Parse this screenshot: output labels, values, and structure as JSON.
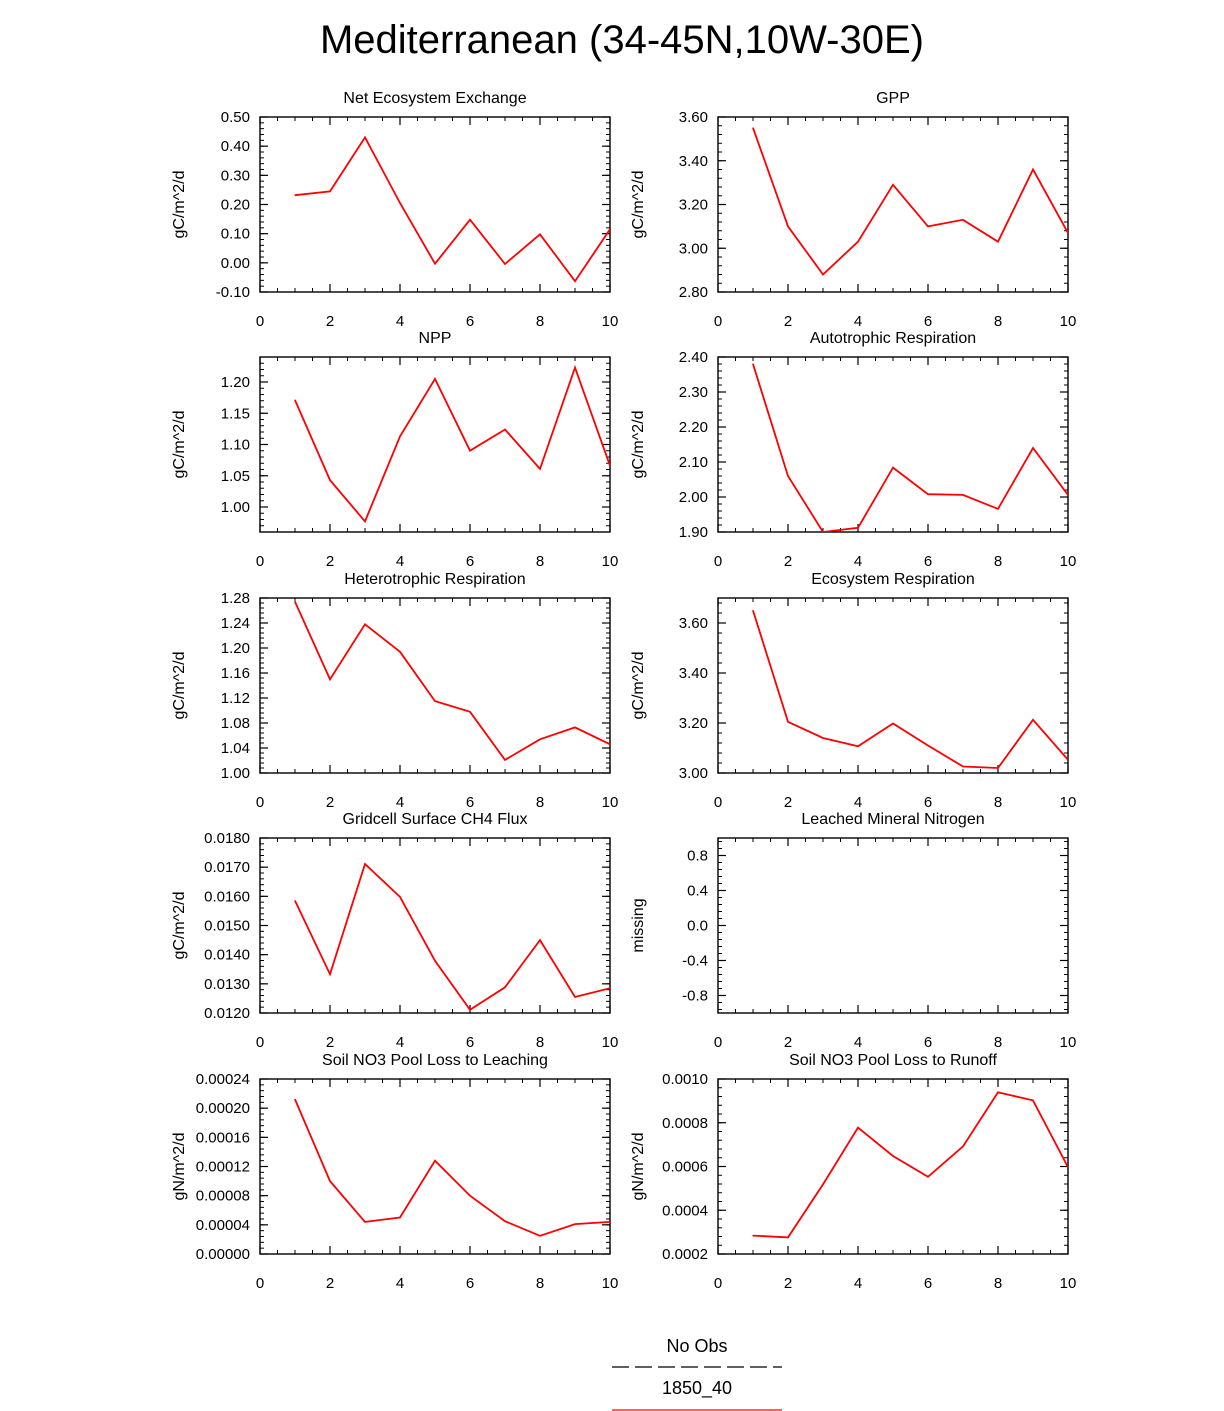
{
  "title": "Mediterranean (34-45N,10W-30E)",
  "colors": {
    "series": "#ff0000",
    "axis": "#000000",
    "obs": "#000000"
  },
  "legend": {
    "obs_label": "No Obs",
    "model_label": "1850_40"
  },
  "chart_data": [
    {
      "type": "line",
      "title": "Net Ecosystem Exchange",
      "ylabel": "gC/m^2/d",
      "xlim": [
        0,
        10
      ],
      "ylim": [
        -0.1,
        0.5
      ],
      "yticks": [
        -0.1,
        0.0,
        0.1,
        0.2,
        0.3,
        0.4,
        0.5
      ],
      "ytick_labels": [
        "-0.10",
        "0.00",
        "0.10",
        "0.20",
        "0.30",
        "0.40",
        "0.50"
      ],
      "xticks": [
        0,
        2,
        4,
        6,
        8,
        10
      ],
      "xtick_labels": [
        "0",
        "2",
        "4",
        "6",
        "8",
        "10"
      ],
      "series": [
        {
          "name": "1850_40",
          "x": [
            1,
            2,
            3,
            4,
            5,
            6,
            7,
            8,
            9,
            10
          ],
          "values": [
            0.232,
            0.245,
            0.43,
            0.205,
            -0.003,
            0.148,
            -0.004,
            0.098,
            -0.063,
            0.115
          ]
        }
      ]
    },
    {
      "type": "line",
      "title": "GPP",
      "ylabel": "gC/m^2/d",
      "xlim": [
        0,
        10
      ],
      "ylim": [
        2.8,
        3.6
      ],
      "yticks": [
        2.8,
        3.0,
        3.2,
        3.4,
        3.6
      ],
      "ytick_labels": [
        "2.80",
        "3.00",
        "3.20",
        "3.40",
        "3.60"
      ],
      "xticks": [
        0,
        2,
        4,
        6,
        8,
        10
      ],
      "xtick_labels": [
        "0",
        "2",
        "4",
        "6",
        "8",
        "10"
      ],
      "series": [
        {
          "name": "1850_40",
          "x": [
            1,
            2,
            3,
            4,
            5,
            6,
            7,
            8,
            9,
            10
          ],
          "values": [
            3.55,
            3.1,
            2.88,
            3.03,
            3.29,
            3.1,
            3.13,
            3.03,
            3.36,
            3.07
          ]
        }
      ]
    },
    {
      "type": "line",
      "title": "NPP",
      "ylabel": "gC/m^2/d",
      "xlim": [
        0,
        10
      ],
      "ylim": [
        0.96,
        1.24
      ],
      "yticks": [
        1.0,
        1.05,
        1.1,
        1.15,
        1.2
      ],
      "ytick_labels": [
        "1.00",
        "1.05",
        "1.10",
        "1.15",
        "1.20"
      ],
      "xticks": [
        0,
        2,
        4,
        6,
        8,
        10
      ],
      "xtick_labels": [
        "0",
        "2",
        "4",
        "6",
        "8",
        "10"
      ],
      "series": [
        {
          "name": "1850_40",
          "x": [
            1,
            2,
            3,
            4,
            5,
            6,
            7,
            8,
            9,
            10
          ],
          "values": [
            1.171,
            1.043,
            0.977,
            1.113,
            1.205,
            1.09,
            1.124,
            1.061,
            1.223,
            1.066
          ]
        }
      ]
    },
    {
      "type": "line",
      "title": "Autotrophic Respiration",
      "ylabel": "gC/m^2/d",
      "xlim": [
        0,
        10
      ],
      "ylim": [
        1.9,
        2.4
      ],
      "yticks": [
        1.9,
        2.0,
        2.1,
        2.2,
        2.3,
        2.4
      ],
      "ytick_labels": [
        "1.90",
        "2.00",
        "2.10",
        "2.20",
        "2.30",
        "2.40"
      ],
      "xticks": [
        0,
        2,
        4,
        6,
        8,
        10
      ],
      "xtick_labels": [
        "0",
        "2",
        "4",
        "6",
        "8",
        "10"
      ],
      "series": [
        {
          "name": "1850_40",
          "x": [
            1,
            2,
            3,
            4,
            5,
            6,
            7,
            8,
            9,
            10
          ],
          "values": [
            2.38,
            2.06,
            1.9,
            1.912,
            2.084,
            2.008,
            2.006,
            1.966,
            2.14,
            2.006
          ]
        }
      ]
    },
    {
      "type": "line",
      "title": "Heterotrophic Respiration",
      "ylabel": "gC/m^2/d",
      "xlim": [
        0,
        10
      ],
      "ylim": [
        1.0,
        1.28
      ],
      "yticks": [
        1.0,
        1.04,
        1.08,
        1.12,
        1.16,
        1.2,
        1.24,
        1.28
      ],
      "ytick_labels": [
        "1.00",
        "1.04",
        "1.08",
        "1.12",
        "1.16",
        "1.20",
        "1.24",
        "1.28"
      ],
      "xticks": [
        0,
        2,
        4,
        6,
        8,
        10
      ],
      "xtick_labels": [
        "0",
        "2",
        "4",
        "6",
        "8",
        "10"
      ],
      "series": [
        {
          "name": "1850_40",
          "x": [
            1,
            2,
            3,
            4,
            5,
            6,
            7,
            8,
            9,
            10
          ],
          "values": [
            1.274,
            1.15,
            1.238,
            1.194,
            1.115,
            1.098,
            1.021,
            1.054,
            1.073,
            1.046
          ]
        }
      ]
    },
    {
      "type": "line",
      "title": "Ecosystem Respiration",
      "ylabel": "gC/m^2/d",
      "xlim": [
        0,
        10
      ],
      "ylim": [
        3.0,
        3.7
      ],
      "yticks": [
        3.0,
        3.2,
        3.4,
        3.6
      ],
      "ytick_labels": [
        "3.00",
        "3.20",
        "3.40",
        "3.60"
      ],
      "xticks": [
        0,
        2,
        4,
        6,
        8,
        10
      ],
      "xtick_labels": [
        "0",
        "2",
        "4",
        "6",
        "8",
        "10"
      ],
      "series": [
        {
          "name": "1850_40",
          "x": [
            1,
            2,
            3,
            4,
            5,
            6,
            7,
            8,
            9,
            10
          ],
          "values": [
            3.65,
            3.205,
            3.14,
            3.107,
            3.198,
            3.11,
            3.026,
            3.02,
            3.213,
            3.053
          ]
        }
      ]
    },
    {
      "type": "line",
      "title": "Gridcell Surface CH4 Flux",
      "ylabel": "gC/m^2/d",
      "xlim": [
        0,
        10
      ],
      "ylim": [
        0.012,
        0.018
      ],
      "yticks": [
        0.012,
        0.013,
        0.014,
        0.015,
        0.016,
        0.017,
        0.018
      ],
      "ytick_labels": [
        "0.0120",
        "0.0130",
        "0.0140",
        "0.0150",
        "0.0160",
        "0.0170",
        "0.0180"
      ],
      "xticks": [
        0,
        2,
        4,
        6,
        8,
        10
      ],
      "xtick_labels": [
        "0",
        "2",
        "4",
        "6",
        "8",
        "10"
      ],
      "series": [
        {
          "name": "1850_40",
          "x": [
            1,
            2,
            3,
            4,
            5,
            6,
            7,
            8,
            9,
            10
          ],
          "values": [
            0.01585,
            0.01333,
            0.01711,
            0.01598,
            0.01379,
            0.01211,
            0.01288,
            0.0145,
            0.01255,
            0.01285
          ]
        }
      ]
    },
    {
      "type": "line",
      "title": "Leached Mineral Nitrogen",
      "ylabel": "missing",
      "xlim": [
        0,
        10
      ],
      "ylim": [
        -1.0,
        1.0
      ],
      "yticks": [
        -0.8,
        -0.4,
        0.0,
        0.4,
        0.8
      ],
      "ytick_labels": [
        "-0.8",
        "-0.4",
        "0.0",
        "0.4",
        "0.8"
      ],
      "xticks": [
        0,
        2,
        4,
        6,
        8,
        10
      ],
      "xtick_labels": [
        "0",
        "2",
        "4",
        "6",
        "8",
        "10"
      ],
      "series": []
    },
    {
      "type": "line",
      "title": "Soil NO3 Pool Loss to Leaching",
      "ylabel": "gN/m^2/d",
      "xlim": [
        0,
        10
      ],
      "ylim": [
        0.0,
        0.00024
      ],
      "yticks": [
        0.0,
        4e-05,
        8e-05,
        0.00012,
        0.00016,
        0.0002,
        0.00024
      ],
      "ytick_labels": [
        "0.00000",
        "0.00004",
        "0.00008",
        "0.00012",
        "0.00016",
        "0.00020",
        "0.00024"
      ],
      "xticks": [
        0,
        2,
        4,
        6,
        8,
        10
      ],
      "xtick_labels": [
        "0",
        "2",
        "4",
        "6",
        "8",
        "10"
      ],
      "series": [
        {
          "name": "1850_40",
          "x": [
            1,
            2,
            3,
            4,
            5,
            6,
            7,
            8,
            9,
            10
          ],
          "values": [
            0.000212,
            0.0001,
            4.4e-05,
            5e-05,
            0.000128,
            8e-05,
            4.5e-05,
            2.5e-05,
            4.1e-05,
            4.4e-05
          ]
        }
      ]
    },
    {
      "type": "line",
      "title": "Soil NO3 Pool Loss to Runoff",
      "ylabel": "gN/m^2/d",
      "xlim": [
        0,
        10
      ],
      "ylim": [
        0.0002,
        0.001
      ],
      "yticks": [
        0.0002,
        0.0004,
        0.0006,
        0.0008,
        0.001
      ],
      "ytick_labels": [
        "0.0002",
        "0.0004",
        "0.0006",
        "0.0008",
        "0.0010"
      ],
      "xticks": [
        0,
        2,
        4,
        6,
        8,
        10
      ],
      "xtick_labels": [
        "0",
        "2",
        "4",
        "6",
        "8",
        "10"
      ],
      "series": [
        {
          "name": "1850_40",
          "x": [
            1,
            2,
            3,
            4,
            5,
            6,
            7,
            8,
            9,
            10
          ],
          "values": [
            0.000284,
            0.000276,
            0.000518,
            0.000778,
            0.000648,
            0.000553,
            0.000692,
            0.000939,
            0.000902,
            0.000597
          ]
        }
      ]
    }
  ]
}
